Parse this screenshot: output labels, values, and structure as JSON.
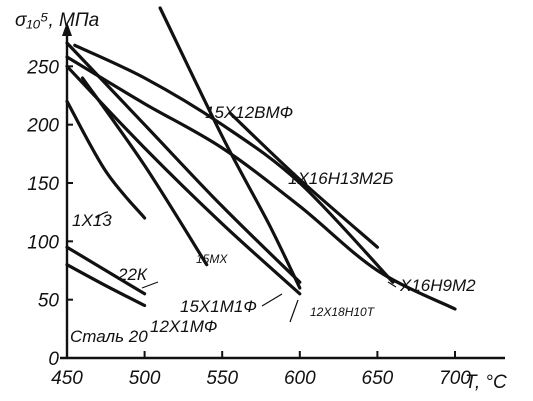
{
  "chart_data": {
    "type": "line",
    "ylabel": "σ₁₀⁵, МПа",
    "xlabel": "T, °C",
    "xlim": [
      450,
      700
    ],
    "ylim": [
      0,
      270
    ],
    "x_ticks": [
      "450",
      "500",
      "550",
      "600",
      "650",
      "700"
    ],
    "y_ticks": [
      "0",
      "50",
      "100",
      "150",
      "200",
      "250"
    ],
    "grid": false,
    "series": [
      {
        "name": "15Х12ВМФ",
        "x": [
          510,
          550,
          580,
          600
        ],
        "y": [
          300,
          190,
          115,
          60
        ]
      },
      {
        "name": "1Х16Н13М2Б",
        "x": [
          555,
          600,
          650
        ],
        "y": [
          210,
          153,
          95
        ]
      },
      {
        "name": "Х16Н9М2",
        "x": [
          455,
          500,
          550,
          600,
          660
        ],
        "y": [
          268,
          240,
          200,
          150,
          65
        ]
      },
      {
        "name": "12Х18Н10Т",
        "x": [
          450,
          500,
          550,
          600,
          650,
          700
        ],
        "y": [
          258,
          218,
          180,
          130,
          75,
          42
        ]
      },
      {
        "name": "15Х1М1Ф",
        "x": [
          450,
          500,
          550,
          600
        ],
        "y": [
          270,
          200,
          130,
          65
        ]
      },
      {
        "name": "12Х1МФ",
        "x": [
          450,
          500,
          550,
          600
        ],
        "y": [
          250,
          180,
          115,
          55
        ]
      },
      {
        "name": "15МХ",
        "x": [
          460,
          500,
          540
        ],
        "y": [
          240,
          165,
          80
        ]
      },
      {
        "name": "1Х13",
        "x": [
          450,
          475,
          500
        ],
        "y": [
          220,
          160,
          120
        ]
      },
      {
        "name": "22К",
        "x": [
          450,
          475,
          500
        ],
        "y": [
          95,
          75,
          55
        ]
      },
      {
        "name": "Сталь 20",
        "x": [
          450,
          475,
          500
        ],
        "y": [
          80,
          62,
          45
        ]
      }
    ]
  },
  "labels": {
    "l_15X12BMF": "15Х12ВМФ",
    "l_1X16": "1Х16Н13М2Б",
    "l_X16H9M2": "Х16Н9М2",
    "l_12X18": "12Х18Н10Т",
    "l_15X1M1F": "15Х1М1Ф",
    "l_12X1MF": "12Х1МФ",
    "l_15MX": "15МХ",
    "l_1X13": "1Х13",
    "l_22K": "22К",
    "l_stal20": "Сталь 20"
  }
}
